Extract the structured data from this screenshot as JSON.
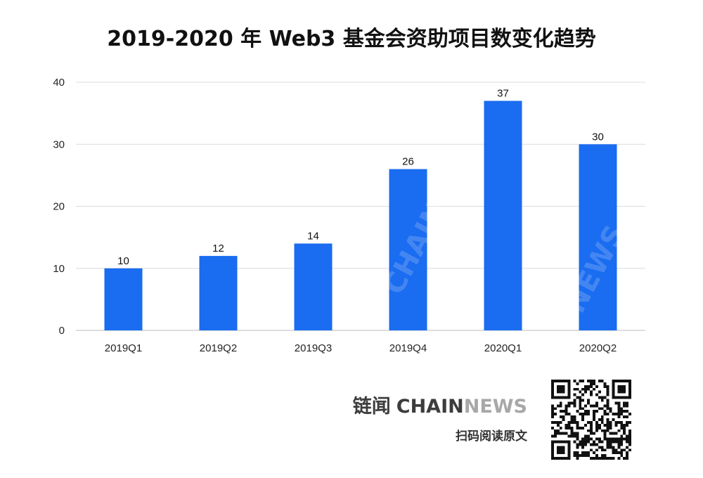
{
  "chart_data": {
    "type": "bar",
    "title": "2019-2020 年 Web3 基金会资助项目数变化趋势",
    "categories": [
      "2019Q1",
      "2019Q2",
      "2019Q3",
      "2019Q4",
      "2020Q1",
      "2020Q2"
    ],
    "values": [
      10,
      12,
      14,
      26,
      37,
      30
    ],
    "xlabel": "",
    "ylabel": "",
    "ylim": [
      0,
      40
    ],
    "yticks": [
      0,
      10,
      20,
      30,
      40
    ],
    "grid": true,
    "data_labels": true,
    "legend": "none",
    "bar_color": "#1a6cf0"
  },
  "footer": {
    "brand_cn": "链闻",
    "brand_chain": "CHAIN",
    "brand_news": "NEWS",
    "scan_text": "扫码阅读原文"
  },
  "icons": {
    "qr": "qr-code-icon"
  }
}
